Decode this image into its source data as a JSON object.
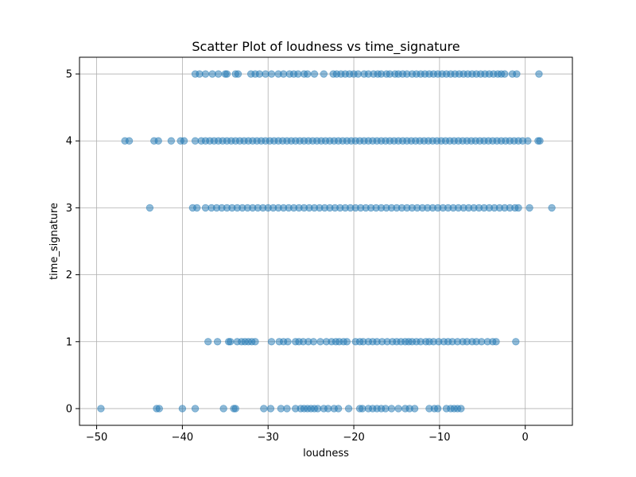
{
  "chart_data": {
    "type": "scatter",
    "title": "Scatter Plot of loudness vs time_signature",
    "xlabel": "loudness",
    "ylabel": "time_signature",
    "xlim": [
      -52,
      5.5
    ],
    "ylim": [
      -0.25,
      5.25
    ],
    "xticks": [
      -50,
      -40,
      -30,
      -20,
      -10,
      0
    ],
    "yticks": [
      0,
      1,
      2,
      3,
      4,
      5
    ],
    "grid": true,
    "colors": {
      "marker": "#1f77b4",
      "marker_alpha": 0.5,
      "grid": "#b0b0b0",
      "axes": "#000000"
    },
    "series": [
      {
        "y": 5,
        "x": [
          -38.5,
          -38,
          -37.3,
          -36.5,
          -35.8,
          -35,
          -34.8,
          -33.8,
          -33.5,
          -32,
          -31.5,
          -31,
          -30.3,
          -29.6,
          -28.8,
          -28.2,
          -27.5,
          -27,
          -26.5,
          -25.8,
          -25.4,
          -24.6,
          -23.5,
          -22.4,
          -22,
          -21.5,
          -21,
          -20.5,
          -20,
          -19.5,
          -18.8,
          -18.3,
          -17.7,
          -17.2,
          -16.8,
          -16.2,
          -15.8,
          -15.2,
          -14.8,
          -14.3,
          -13.8,
          -13.2,
          -12.7,
          -12.2,
          -11.7,
          -11.2,
          -10.7,
          -10.2,
          -9.7,
          -9.2,
          -8.7,
          -8.2,
          -7.7,
          -7.2,
          -6.7,
          -6.2,
          -5.7,
          -5.2,
          -4.7,
          -4.2,
          -3.7,
          -3.2,
          -2.8,
          -2.4,
          -1.5,
          -1,
          1.6
        ]
      },
      {
        "y": 4,
        "x": [
          -46.7,
          -46.2,
          -43.3,
          -42.8,
          -41.3,
          -40.2,
          -39.8,
          -38.5,
          -37.8,
          -37.3,
          -36.8,
          -36.3,
          -35.8,
          -35.3,
          -34.8,
          -34.3,
          -33.8,
          -33.3,
          -32.8,
          -32.3,
          -31.8,
          -31.3,
          -30.8,
          -30.3,
          -29.8,
          -29.3,
          -28.8,
          -28.3,
          -27.8,
          -27.3,
          -26.8,
          -26.3,
          -25.8,
          -25.3,
          -24.8,
          -24.3,
          -23.8,
          -23.3,
          -22.8,
          -22.3,
          -21.8,
          -21.3,
          -20.8,
          -20.3,
          -19.8,
          -19.3,
          -18.8,
          -18.3,
          -17.8,
          -17.3,
          -16.8,
          -16.3,
          -15.8,
          -15.3,
          -14.8,
          -14.3,
          -13.8,
          -13.3,
          -12.8,
          -12.3,
          -11.8,
          -11.3,
          -10.8,
          -10.3,
          -9.8,
          -9.3,
          -8.8,
          -8.3,
          -7.8,
          -7.3,
          -6.8,
          -6.3,
          -5.8,
          -5.3,
          -4.8,
          -4.3,
          -3.8,
          -3.3,
          -2.8,
          -2.3,
          -1.8,
          -1.3,
          -0.8,
          -0.3,
          0.3,
          1.5,
          1.7
        ]
      },
      {
        "y": 3,
        "x": [
          -43.8,
          -38.8,
          -38.3,
          -37.3,
          -36.6,
          -36,
          -35.4,
          -34.8,
          -34.2,
          -33.6,
          -33,
          -32.4,
          -31.8,
          -31.2,
          -30.6,
          -30,
          -29.4,
          -28.8,
          -28.2,
          -27.6,
          -27,
          -26.4,
          -25.8,
          -25.2,
          -24.6,
          -24,
          -23.4,
          -22.8,
          -22.2,
          -21.6,
          -21,
          -20.4,
          -19.8,
          -19.2,
          -18.6,
          -18,
          -17.4,
          -16.8,
          -16.2,
          -15.6,
          -15,
          -14.4,
          -13.8,
          -13.2,
          -12.6,
          -12,
          -11.4,
          -10.8,
          -10.2,
          -9.6,
          -9,
          -8.4,
          -7.8,
          -7.2,
          -6.6,
          -6,
          -5.4,
          -4.8,
          -4.2,
          -3.6,
          -3,
          -2.4,
          -1.8,
          -1.2,
          -0.8,
          0.5,
          3.1
        ]
      },
      {
        "y": 1,
        "x": [
          -37,
          -35.9,
          -34.6,
          -34.4,
          -33.6,
          -33.1,
          -32.7,
          -32.3,
          -31.9,
          -31.5,
          -29.6,
          -28.7,
          -28.2,
          -27.7,
          -26.8,
          -26.4,
          -25.9,
          -25.3,
          -24.7,
          -23.9,
          -23.2,
          -22.6,
          -22.1,
          -21.7,
          -21.2,
          -20.8,
          -19.8,
          -19.3,
          -18.9,
          -18.3,
          -17.8,
          -17.3,
          -16.7,
          -16.1,
          -15.5,
          -15,
          -14.5,
          -14,
          -13.6,
          -13.2,
          -12.7,
          -12.2,
          -11.6,
          -11.2,
          -10.7,
          -10.1,
          -9.5,
          -9,
          -8.5,
          -7.9,
          -7.3,
          -6.8,
          -6.2,
          -5.7,
          -5.1,
          -4.4,
          -3.8,
          -3.4,
          -1.1
        ]
      },
      {
        "y": 0,
        "x": [
          -49.5,
          -43,
          -42.7,
          -40,
          -38.5,
          -35.2,
          -34,
          -33.8,
          -30.5,
          -29.7,
          -28.5,
          -27.8,
          -26.8,
          -26.2,
          -25.8,
          -25.4,
          -25,
          -24.6,
          -24.2,
          -23.5,
          -23,
          -22.3,
          -21.8,
          -20.6,
          -19.3,
          -19,
          -18.3,
          -17.8,
          -17.3,
          -16.8,
          -16.3,
          -15.6,
          -14.8,
          -14,
          -13.5,
          -12.9,
          -11.2,
          -10.6,
          -10.2,
          -9.2,
          -8.7,
          -8.3,
          -7.9,
          -7.5
        ]
      }
    ]
  }
}
